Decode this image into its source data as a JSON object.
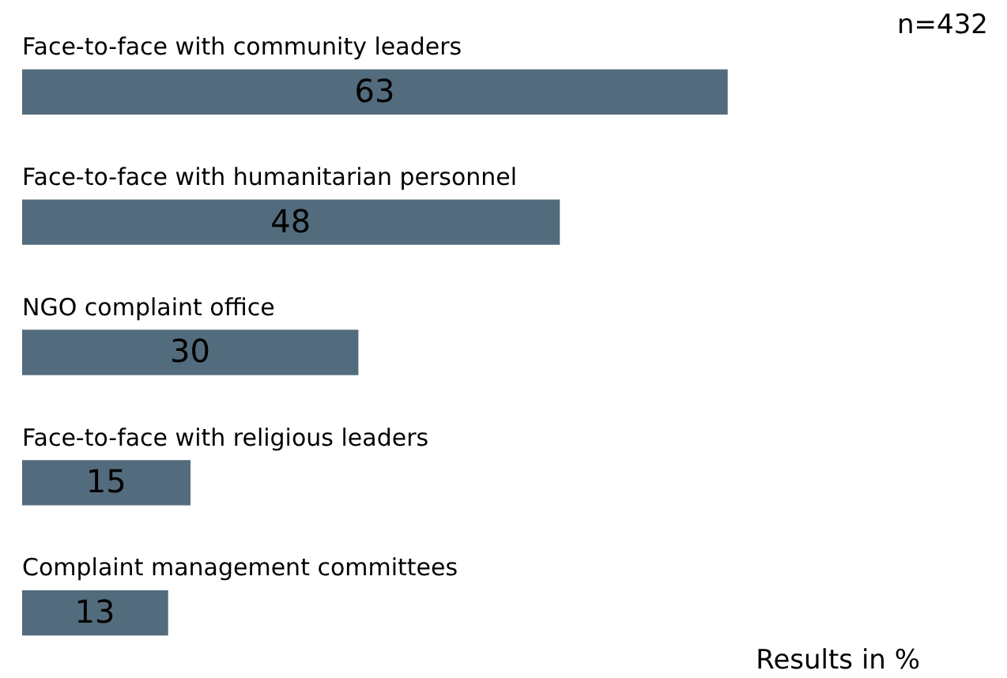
{
  "chart_data": {
    "type": "bar",
    "orientation": "horizontal",
    "categories": [
      "Face-to-face with community leaders",
      "Face-to-face with humanitarian personnel",
      "NGO complaint office",
      "Face-to-face with religious leaders",
      "Complaint management committees"
    ],
    "values": [
      63,
      48,
      30,
      15,
      13
    ],
    "color": "#536c7d",
    "data_labels": true,
    "annotations": [
      "n=432",
      "Results in %"
    ]
  }
}
